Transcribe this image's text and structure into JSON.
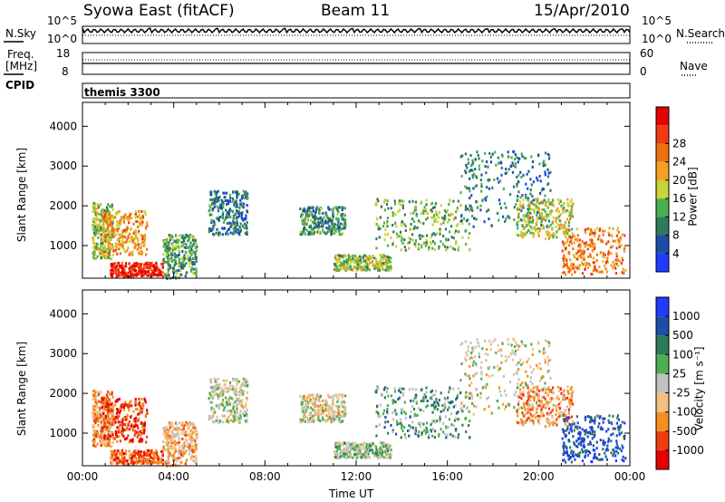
{
  "header": {
    "station": "Syowa East (fitACF)",
    "beam": "Beam 11",
    "date": "15/Apr/2010"
  },
  "panels": {
    "nsky_label": "N.Sky",
    "nsearch_label": "N.Search",
    "freq_label_1": "Freq.",
    "freq_label_2": "[MHz]",
    "nave_label": "Nave",
    "cpid_label": "CPID",
    "cpid_value": "themis 3300",
    "ticks": {
      "nsky_top": "10^5",
      "nsky_bottom": "10^0",
      "nsearch_top": "10^5",
      "nsearch_bottom": "10^0",
      "freq_top": "18",
      "freq_bottom": "8",
      "nave_top": "60",
      "nave_bottom": "0"
    }
  },
  "colors": {
    "power_scale": [
      "#1f3cff",
      "#1f4ea8",
      "#2f7a5a",
      "#4caf50",
      "#c8d43a",
      "#f4a020",
      "#f07010",
      "#f03a10",
      "#e60000"
    ],
    "velocity_scale": [
      "#e60000",
      "#f03a10",
      "#f49020",
      "#f4c080",
      "#c0c0c0",
      "#4caf50",
      "#2f7a5a",
      "#1f4ea8",
      "#1f3cff"
    ]
  },
  "chart_data": [
    {
      "type": "heatmap",
      "name": "power",
      "xlabel": "",
      "ylabel": "Slant Range [km]",
      "xlim_hours": [
        0,
        24
      ],
      "ylim": [
        180,
        4600
      ],
      "yticks": [
        "1000",
        "2000",
        "3000",
        "4000"
      ],
      "colorbar_label": "Power [dB]",
      "colorbar_ticks": [
        "4",
        "8",
        "12",
        "16",
        "20",
        "24",
        "28"
      ],
      "colorbar_range": [
        0,
        32
      ],
      "regions": [
        {
          "t": [
            0.4,
            1.3
          ],
          "r": [
            700,
            2100
          ],
          "level": 0.45
        },
        {
          "t": [
            0.8,
            2.8
          ],
          "r": [
            800,
            1900
          ],
          "level": 0.65
        },
        {
          "t": [
            1.2,
            3.5
          ],
          "r": [
            250,
            600
          ],
          "level": 0.9
        },
        {
          "t": [
            3.5,
            5.0
          ],
          "r": [
            200,
            1300
          ],
          "level": 0.35
        },
        {
          "t": [
            5.5,
            7.2
          ],
          "r": [
            1300,
            2400
          ],
          "level": 0.25
        },
        {
          "t": [
            9.5,
            11.5
          ],
          "r": [
            1300,
            2000
          ],
          "level": 0.3
        },
        {
          "t": [
            11.0,
            13.5
          ],
          "r": [
            400,
            800
          ],
          "level": 0.45
        },
        {
          "t": [
            12.8,
            17.0
          ],
          "r": [
            900,
            2200
          ],
          "level": 0.4
        },
        {
          "t": [
            16.5,
            20.5
          ],
          "r": [
            1500,
            3400
          ],
          "level": 0.25
        },
        {
          "t": [
            19.0,
            21.5
          ],
          "r": [
            1200,
            2200
          ],
          "level": 0.5
        },
        {
          "t": [
            21.0,
            23.8
          ],
          "r": [
            300,
            1500
          ],
          "level": 0.7
        }
      ]
    },
    {
      "type": "heatmap",
      "name": "velocity",
      "xlabel": "Time UT",
      "ylabel": "Slant Range [km]",
      "xticks": [
        "00:00",
        "04:00",
        "08:00",
        "12:00",
        "16:00",
        "20:00",
        "00:00"
      ],
      "xlim_hours": [
        0,
        24
      ],
      "ylim": [
        180,
        4600
      ],
      "yticks": [
        "1000",
        "2000",
        "3000",
        "4000"
      ],
      "colorbar_label": "Velocity [m s⁻¹]",
      "colorbar_ticks": [
        "-1000",
        "-500",
        "-100",
        "-25",
        "25",
        "100",
        "500",
        "1000"
      ],
      "regions": [
        {
          "t": [
            0.4,
            1.3
          ],
          "r": [
            700,
            2100
          ],
          "level": 0.3
        },
        {
          "t": [
            0.8,
            2.8
          ],
          "r": [
            800,
            1900
          ],
          "level": 0.15
        },
        {
          "t": [
            1.2,
            3.5
          ],
          "r": [
            250,
            600
          ],
          "level": 0.2
        },
        {
          "t": [
            3.5,
            5.0
          ],
          "r": [
            200,
            1300
          ],
          "level": 0.35
        },
        {
          "t": [
            5.5,
            7.2
          ],
          "r": [
            1300,
            2400
          ],
          "level": 0.5
        },
        {
          "t": [
            9.5,
            11.5
          ],
          "r": [
            1300,
            2000
          ],
          "level": 0.45
        },
        {
          "t": [
            11.0,
            13.5
          ],
          "r": [
            400,
            800
          ],
          "level": 0.55
        },
        {
          "t": [
            12.8,
            17.0
          ],
          "r": [
            900,
            2200
          ],
          "level": 0.65
        },
        {
          "t": [
            16.5,
            20.5
          ],
          "r": [
            1500,
            3400
          ],
          "level": 0.45
        },
        {
          "t": [
            19.0,
            21.5
          ],
          "r": [
            1200,
            2200
          ],
          "level": 0.3
        },
        {
          "t": [
            21.0,
            23.8
          ],
          "r": [
            300,
            1500
          ],
          "level": 0.85
        }
      ]
    }
  ]
}
